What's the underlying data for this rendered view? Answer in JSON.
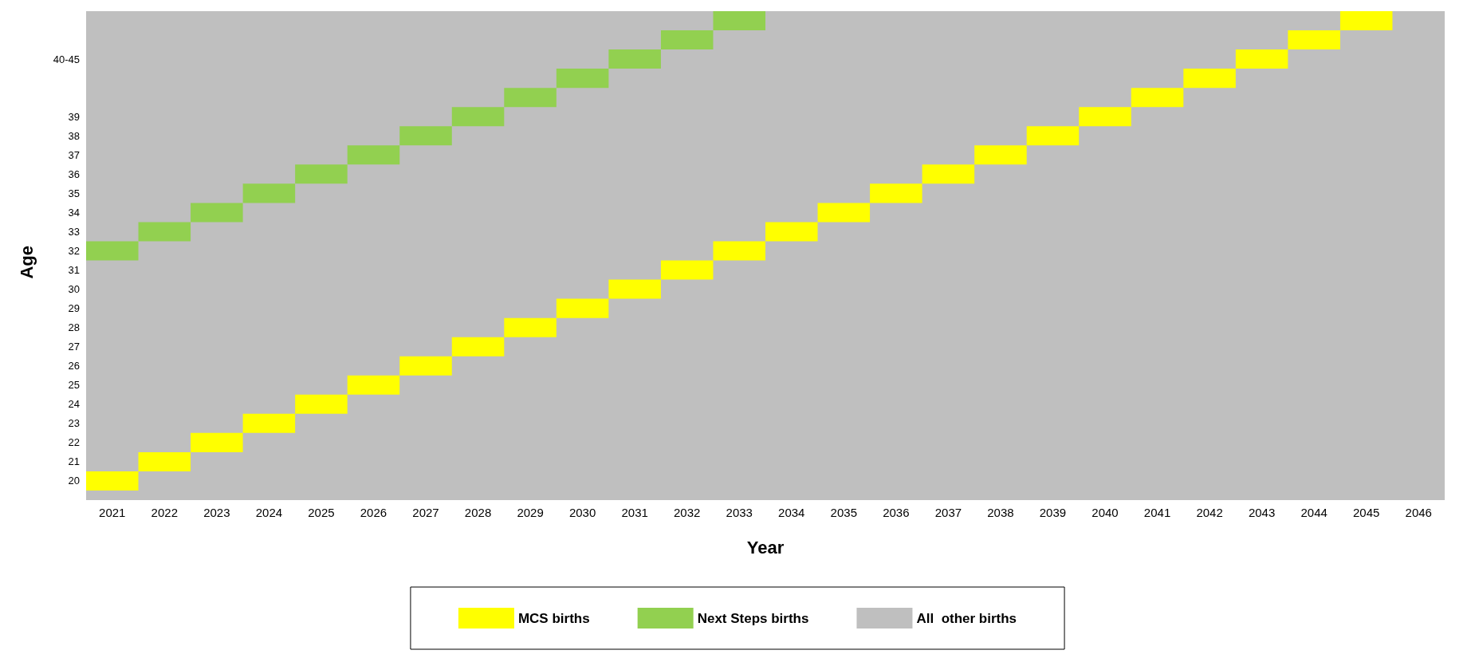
{
  "chart_data": {
    "type": "bar",
    "xlabel": "Year",
    "ylabel": "Age",
    "legend": "bottom",
    "grid": false,
    "categories": [
      "2021",
      "2022",
      "2023",
      "2024",
      "2025",
      "2026",
      "2027",
      "2028",
      "2029",
      "2030",
      "2031",
      "2032",
      "2033",
      "2034",
      "2035",
      "2036",
      "2037",
      "2038",
      "2039",
      "2040",
      "2041",
      "2042",
      "2043",
      "2044",
      "2045",
      "2046"
    ],
    "ylim": [
      19,
      44.5
    ],
    "yticks": [
      20,
      21,
      22,
      23,
      24,
      25,
      26,
      27,
      28,
      29,
      30,
      31,
      32,
      33,
      34,
      35,
      36,
      37,
      38,
      39,
      {
        "value": 42,
        "label": "40-45"
      }
    ],
    "bands": [
      {
        "axis": "y",
        "from": 19,
        "to": 44.5,
        "label": "All  other births",
        "color": "#bfbfbf"
      }
    ],
    "series": [
      {
        "name": "MCS births",
        "color": "#ffff00",
        "base": [
          19.5,
          20.5,
          21.5,
          22.5,
          23.5,
          24.5,
          25.5,
          26.5,
          27.5,
          28.5,
          29.5,
          30.5,
          31.5,
          32.5,
          33.5,
          34.5,
          35.5,
          36.5,
          37.5,
          38.5,
          39.5,
          40.5,
          41.5,
          42.5,
          43.5,
          null
        ],
        "values": [
          1,
          1,
          1,
          1,
          1,
          1,
          1,
          1,
          1,
          1,
          1,
          1,
          1,
          1,
          1,
          1,
          1,
          1,
          1,
          1,
          1,
          1,
          1,
          1,
          1,
          null
        ]
      },
      {
        "name": "Next Steps births",
        "color": "#92d050",
        "base": [
          31.5,
          32.5,
          33.5,
          34.5,
          35.5,
          36.5,
          37.5,
          38.5,
          39.5,
          40.5,
          41.5,
          42.5,
          43.5,
          null,
          null,
          null,
          null,
          null,
          null,
          null,
          null,
          null,
          null,
          null,
          null,
          null
        ],
        "values": [
          1,
          1,
          1,
          1,
          1,
          1,
          1,
          1,
          1,
          1,
          1,
          1,
          1,
          null,
          null,
          null,
          null,
          null,
          null,
          null,
          null,
          null,
          null,
          null,
          null,
          null
        ]
      }
    ]
  }
}
